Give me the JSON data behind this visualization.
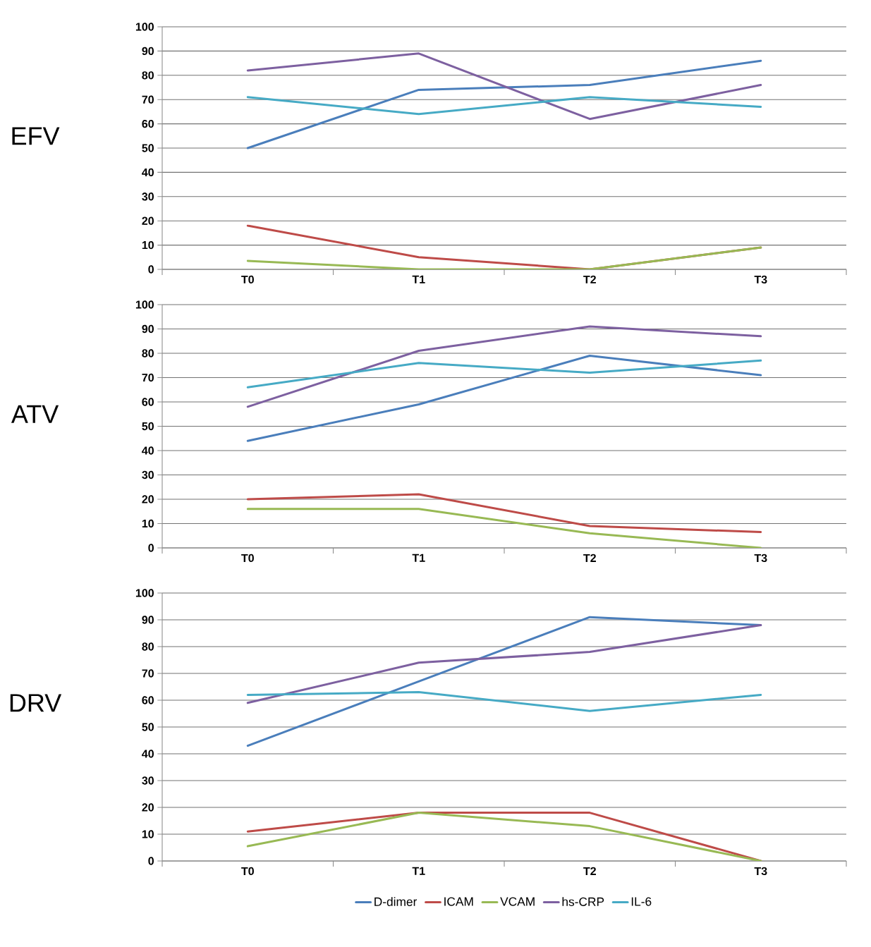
{
  "chart_data": [
    {
      "type": "line",
      "ylabel": "EFV",
      "categories": [
        "T0",
        "T1",
        "T2",
        "T3"
      ],
      "ylim": [
        0,
        100
      ],
      "yticks": [
        0,
        10,
        20,
        30,
        40,
        50,
        60,
        70,
        80,
        90,
        100
      ],
      "grid": "y",
      "series": [
        {
          "color": "#4a7ebb",
          "values": [
            50,
            74,
            76,
            86
          ]
        },
        {
          "color": "#be4b48",
          "values": [
            18,
            5,
            0,
            9
          ]
        },
        {
          "color": "#98b954",
          "values": [
            3.5,
            0,
            0,
            9
          ]
        },
        {
          "color": "#7d60a0",
          "values": [
            82,
            89,
            62,
            76
          ]
        },
        {
          "color": "#46aac5",
          "values": [
            71,
            64,
            71,
            67
          ]
        }
      ]
    },
    {
      "type": "line",
      "ylabel": "ATV",
      "categories": [
        "T0",
        "T1",
        "T2",
        "T3"
      ],
      "ylim": [
        0,
        100
      ],
      "yticks": [
        0,
        10,
        20,
        30,
        40,
        50,
        60,
        70,
        80,
        90,
        100
      ],
      "grid": "y",
      "series": [
        {
          "color": "#4a7ebb",
          "values": [
            44,
            59,
            79,
            71
          ]
        },
        {
          "color": "#be4b48",
          "values": [
            20,
            22,
            9,
            6.5
          ]
        },
        {
          "color": "#98b954",
          "values": [
            16,
            16,
            6,
            0
          ]
        },
        {
          "color": "#7d60a0",
          "values": [
            58,
            81,
            91,
            87
          ]
        },
        {
          "color": "#46aac5",
          "values": [
            66,
            76,
            72,
            77
          ]
        }
      ]
    },
    {
      "type": "line",
      "ylabel": "DRV",
      "categories": [
        "T0",
        "T1",
        "T2",
        "T3"
      ],
      "ylim": [
        0,
        100
      ],
      "yticks": [
        0,
        10,
        20,
        30,
        40,
        50,
        60,
        70,
        80,
        90,
        100
      ],
      "grid": "y",
      "legend": "bottom",
      "series": [
        {
          "name": "D-dimer",
          "color": "#4a7ebb",
          "values": [
            43,
            67,
            91,
            88
          ]
        },
        {
          "name": "ICAM",
          "color": "#be4b48",
          "values": [
            11,
            18,
            18,
            0
          ]
        },
        {
          "name": "VCAM",
          "color": "#98b954",
          "values": [
            5.5,
            18,
            13,
            0
          ]
        },
        {
          "name": "hs-CRP",
          "color": "#7d60a0",
          "values": [
            59,
            74,
            78,
            88
          ]
        },
        {
          "name": "IL-6",
          "color": "#46aac5",
          "values": [
            62,
            63,
            56,
            62
          ]
        }
      ]
    }
  ]
}
